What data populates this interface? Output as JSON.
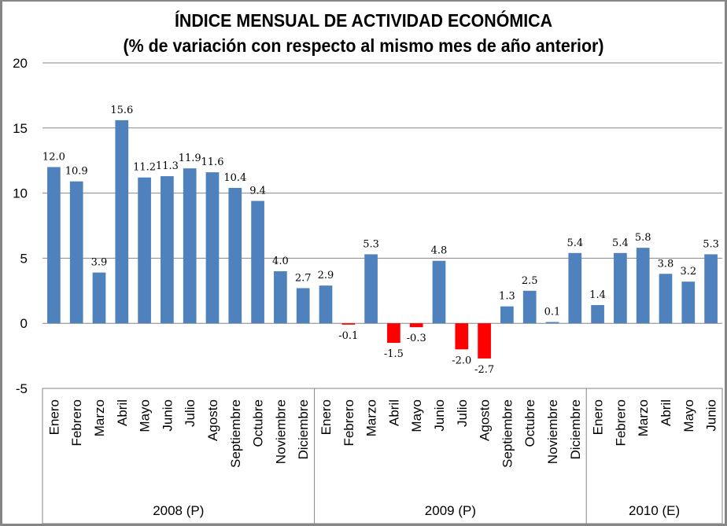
{
  "chart_data": {
    "type": "bar",
    "title": "ÍNDICE MENSUAL DE ACTIVIDAD ECONÓMICA",
    "subtitle": "(% de variación con respecto al mismo mes de año anterior)",
    "xlabel": "",
    "ylabel": "",
    "ylim": [
      -5,
      20
    ],
    "yticks": [
      -5,
      0,
      5,
      10,
      15,
      20
    ],
    "grid": true,
    "legend": "none",
    "colors": {
      "positive": "#4F81BD",
      "negative": "#FF0000",
      "grid": "#868686"
    },
    "groups": [
      {
        "label": "2008 (P)",
        "categories": [
          "Enero",
          "Febrero",
          "Marzo",
          "Abril",
          "Mayo",
          "Junio",
          "Julio",
          "Agosto",
          "Septiembre",
          "Octubre",
          "Noviembre",
          "Diciembre"
        ]
      },
      {
        "label": "2009 (P)",
        "categories": [
          "Enero",
          "Febrero",
          "Marzo",
          "Abril",
          "Mayo",
          "Junio",
          "Julio",
          "Agosto",
          "Septiembre",
          "Octubre",
          "Noviembre",
          "Diciembre"
        ]
      },
      {
        "label": "2010 (E)",
        "categories": [
          "Enero",
          "Febrero",
          "Marzo",
          "Abril",
          "Mayo",
          "Junio"
        ]
      }
    ],
    "values": [
      12.0,
      10.9,
      3.9,
      15.6,
      11.2,
      11.3,
      11.9,
      11.6,
      10.4,
      9.4,
      4.0,
      2.7,
      2.9,
      -0.1,
      5.3,
      -1.5,
      -0.3,
      4.8,
      -2.0,
      -2.7,
      1.3,
      2.5,
      0.1,
      5.4,
      1.4,
      5.4,
      5.8,
      3.8,
      3.2,
      5.3
    ],
    "data_labels": [
      "12.0",
      "10.9",
      "3.9",
      "15.6",
      "11.2",
      "11.3",
      "11.9",
      "11.6",
      "10.4",
      "9.4",
      "4.0",
      "2.7",
      "2.9",
      "-0.1",
      "5.3",
      "-1.5",
      "-0.3",
      "4.8",
      "-2.0",
      "-2.7",
      "1.3",
      "2.5",
      "0.1",
      "5.4",
      "1.4",
      "5.4",
      "5.8",
      "3.8",
      "3.2",
      "5.3"
    ]
  }
}
